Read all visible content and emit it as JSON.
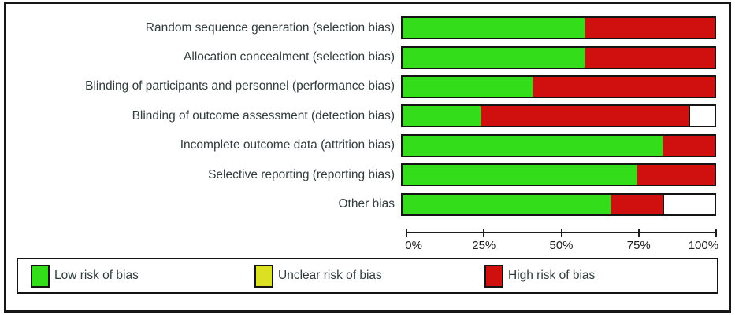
{
  "figure": {
    "kind": "risk-of-bias-graph"
  },
  "chart_data": {
    "type": "bar",
    "orientation": "horizontal",
    "stacked": true,
    "title": "",
    "xlabel": "",
    "ylabel": "",
    "xlim": [
      0,
      100
    ],
    "grid": false,
    "legend_position": "bottom",
    "categories": [
      "Random sequence generation (selection bias)",
      "Allocation concealment (selection bias)",
      "Blinding of participants and personnel (performance bias)",
      "Blinding of outcome assessment (detection bias)",
      "Incomplete outcome data (attrition bias)",
      "Selective reporting (reporting bias)",
      "Other bias"
    ],
    "series": [
      {
        "name": "Low risk of bias",
        "risk": "low",
        "color": "#33dd1a",
        "values": [
          58.33,
          58.33,
          41.67,
          25,
          83.33,
          75,
          66.67
        ]
      },
      {
        "name": "Unclear risk of bias",
        "risk": "unclear",
        "color": "#dbe122",
        "values": [
          0,
          0,
          0,
          0,
          0,
          0,
          0
        ]
      },
      {
        "name": "High risk of bias",
        "risk": "high",
        "color": "#d00f0f",
        "values": [
          41.67,
          41.67,
          58.33,
          66.67,
          16.67,
          25,
          16.67
        ]
      },
      {
        "name": "blank",
        "risk": "blank",
        "color": "#ffffff",
        "values": [
          0,
          0,
          0,
          8.33,
          0,
          0,
          16.67
        ]
      }
    ],
    "x_ticks": [
      {
        "label": "0%",
        "value": 0
      },
      {
        "label": "25%",
        "value": 25
      },
      {
        "label": "50%",
        "value": 50
      },
      {
        "label": "75%",
        "value": 75
      },
      {
        "label": "100%",
        "value": 100
      }
    ]
  },
  "legend": {
    "items": [
      {
        "label": "Low risk of bias",
        "color": "#33dd1a"
      },
      {
        "label": "Unclear risk of bias",
        "color": "#dbe122"
      },
      {
        "label": "High risk of bias",
        "color": "#d00f0f"
      }
    ]
  }
}
